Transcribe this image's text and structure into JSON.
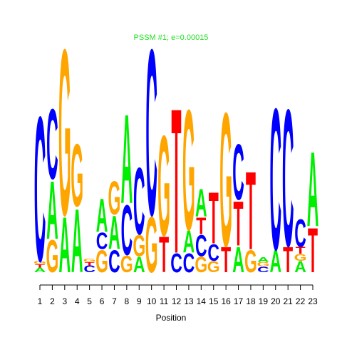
{
  "chart_data": {
    "type": "logo",
    "title": "PSSM #1; e=0.00015",
    "title_color": "#22dd22",
    "x_label": "Position",
    "x": [
      1,
      2,
      3,
      4,
      5,
      6,
      7,
      8,
      9,
      10,
      11,
      12,
      13,
      14,
      15,
      16,
      17,
      18,
      19,
      20,
      21,
      22,
      23
    ],
    "xlim": [
      1,
      23
    ],
    "xticks": [
      1,
      2,
      3,
      4,
      5,
      6,
      7,
      8,
      9,
      10,
      11,
      12,
      13,
      14,
      15,
      16,
      17,
      18,
      19,
      20,
      21,
      22,
      23
    ],
    "ylim": [
      0,
      2
    ],
    "colors": {
      "A": "#00ee00",
      "C": "#0000ff",
      "G": "#ffa500",
      "T": "#ff0000"
    },
    "stacks": [
      {
        "letters": [
          "A",
          "T",
          "G",
          "C"
        ],
        "values": [
          0.04,
          0.03,
          0.03,
          1.3
        ]
      },
      {
        "letters": [
          "G",
          "A",
          "C"
        ],
        "values": [
          0.29,
          0.52,
          0.63
        ]
      },
      {
        "letters": [
          "A",
          "G"
        ],
        "values": [
          0.5,
          1.49
        ]
      },
      {
        "letters": [
          "A",
          "G"
        ],
        "values": [
          0.57,
          0.56
        ]
      },
      {
        "letters": [
          "C",
          "T",
          "G"
        ],
        "values": [
          0.06,
          0.03,
          0.03
        ]
      },
      {
        "letters": [
          "G",
          "C",
          "A"
        ],
        "values": [
          0.2,
          0.15,
          0.3
        ]
      },
      {
        "letters": [
          "C",
          "A",
          "G"
        ],
        "values": [
          0.2,
          0.3,
          0.3
        ]
      },
      {
        "letters": [
          "G",
          "C",
          "A"
        ],
        "values": [
          0.15,
          0.45,
          0.8
        ]
      },
      {
        "letters": [
          "A",
          "G",
          "C"
        ],
        "values": [
          0.14,
          0.19,
          0.6
        ]
      },
      {
        "letters": [
          "G",
          "C"
        ],
        "values": [
          0.5,
          1.49
        ]
      },
      {
        "letters": [
          "T",
          "G"
        ],
        "values": [
          0.32,
          0.9
        ]
      },
      {
        "letters": [
          "C",
          "T"
        ],
        "values": [
          0.17,
          1.3
        ]
      },
      {
        "letters": [
          "C",
          "A",
          "G"
        ],
        "values": [
          0.17,
          0.2,
          1.08
        ]
      },
      {
        "letters": [
          "G",
          "C",
          "T",
          "A"
        ],
        "values": [
          0.14,
          0.19,
          0.15,
          0.25
        ]
      },
      {
        "letters": [
          "G",
          "C",
          "T"
        ],
        "values": [
          0.1,
          0.15,
          0.46
        ]
      },
      {
        "letters": [
          "T",
          "G"
        ],
        "values": [
          0.23,
          1.2
        ]
      },
      {
        "letters": [
          "A",
          "T",
          "C"
        ],
        "values": [
          0.23,
          0.4,
          0.5
        ]
      },
      {
        "letters": [
          "G",
          "T"
        ],
        "values": [
          0.2,
          0.7
        ]
      },
      {
        "letters": [
          "C",
          "G",
          "A"
        ],
        "values": [
          0.05,
          0.04,
          0.04
        ]
      },
      {
        "letters": [
          "A",
          "C"
        ],
        "values": [
          0.2,
          1.27
        ]
      },
      {
        "letters": [
          "T",
          "C"
        ],
        "values": [
          0.23,
          1.23
        ]
      },
      {
        "letters": [
          "A",
          "G",
          "T",
          "C"
        ],
        "values": [
          0.1,
          0.06,
          0.06,
          0.25
        ]
      },
      {
        "letters": [
          "T",
          "A"
        ],
        "values": [
          0.4,
          0.67
        ]
      }
    ]
  }
}
